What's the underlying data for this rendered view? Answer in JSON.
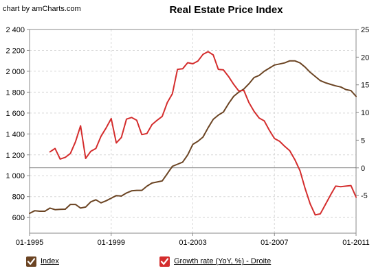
{
  "header": {
    "credit": "chart by amCharts.com"
  },
  "chart_data": {
    "type": "line",
    "title": "Real Estate Price Index",
    "xlabel": "",
    "ylabel": "",
    "x_ticks": [
      "01-1995",
      "01-1999",
      "01-2003",
      "01-2007",
      "01-2011"
    ],
    "x_range": [
      1995.0,
      2011.0
    ],
    "y_left_ticks": [
      "600",
      "800",
      "1 000",
      "1 200",
      "1 400",
      "1 600",
      "1 800",
      "2 000",
      "2 200",
      "2 400"
    ],
    "y_left_range": [
      450,
      2400
    ],
    "y_right_ticks": [
      "-5",
      "0",
      "5",
      "10",
      "15",
      "20",
      "25"
    ],
    "y_right_range": [
      -11.8,
      25
    ],
    "reference_line": {
      "axis": "right",
      "value": 0
    },
    "grid": true,
    "legend_position": "bottom",
    "series": [
      {
        "name": "Index",
        "axis": "left",
        "color": "#6b4423",
        "points": [
          [
            1995.0,
            640
          ],
          [
            1995.25,
            665
          ],
          [
            1995.5,
            660
          ],
          [
            1995.75,
            660
          ],
          [
            1996.0,
            690
          ],
          [
            1996.25,
            675
          ],
          [
            1996.5,
            678
          ],
          [
            1996.75,
            680
          ],
          [
            1997.0,
            725
          ],
          [
            1997.25,
            725
          ],
          [
            1997.5,
            690
          ],
          [
            1997.75,
            700
          ],
          [
            1998.0,
            750
          ],
          [
            1998.25,
            770
          ],
          [
            1998.5,
            740
          ],
          [
            1998.75,
            760
          ],
          [
            1999.0,
            785
          ],
          [
            1999.25,
            810
          ],
          [
            1999.5,
            805
          ],
          [
            1999.75,
            835
          ],
          [
            2000.0,
            855
          ],
          [
            2000.25,
            860
          ],
          [
            2000.5,
            860
          ],
          [
            2000.75,
            900
          ],
          [
            2001.0,
            930
          ],
          [
            2001.25,
            940
          ],
          [
            2001.5,
            950
          ],
          [
            2001.75,
            1020
          ],
          [
            2002.0,
            1090
          ],
          [
            2002.25,
            1110
          ],
          [
            2002.5,
            1130
          ],
          [
            2002.75,
            1200
          ],
          [
            2003.0,
            1300
          ],
          [
            2003.25,
            1330
          ],
          [
            2003.5,
            1370
          ],
          [
            2003.75,
            1460
          ],
          [
            2004.0,
            1540
          ],
          [
            2004.25,
            1580
          ],
          [
            2004.5,
            1610
          ],
          [
            2004.75,
            1690
          ],
          [
            2005.0,
            1760
          ],
          [
            2005.25,
            1800
          ],
          [
            2005.5,
            1830
          ],
          [
            2005.75,
            1880
          ],
          [
            2006.0,
            1940
          ],
          [
            2006.25,
            1960
          ],
          [
            2006.5,
            2000
          ],
          [
            2006.75,
            2030
          ],
          [
            2007.0,
            2060
          ],
          [
            2007.25,
            2070
          ],
          [
            2007.5,
            2080
          ],
          [
            2007.75,
            2100
          ],
          [
            2008.0,
            2100
          ],
          [
            2008.25,
            2080
          ],
          [
            2008.5,
            2040
          ],
          [
            2008.75,
            1990
          ],
          [
            2009.0,
            1950
          ],
          [
            2009.25,
            1910
          ],
          [
            2009.5,
            1890
          ],
          [
            2009.75,
            1875
          ],
          [
            2010.0,
            1860
          ],
          [
            2010.25,
            1850
          ],
          [
            2010.5,
            1825
          ],
          [
            2010.75,
            1815
          ],
          [
            2011.0,
            1760
          ]
        ]
      },
      {
        "name": "Growth rate (YoY, %) - Droite",
        "axis": "right",
        "color": "#d42d2d",
        "points": [
          [
            1996.0,
            2.9
          ],
          [
            1996.25,
            3.5
          ],
          [
            1996.5,
            1.6
          ],
          [
            1996.75,
            1.9
          ],
          [
            1997.0,
            2.6
          ],
          [
            1997.25,
            4.7
          ],
          [
            1997.5,
            7.6
          ],
          [
            1997.75,
            1.7
          ],
          [
            1998.0,
            3.0
          ],
          [
            1998.25,
            3.5
          ],
          [
            1998.5,
            5.7
          ],
          [
            1998.75,
            7.2
          ],
          [
            1999.0,
            8.9
          ],
          [
            1999.25,
            4.5
          ],
          [
            1999.5,
            5.5
          ],
          [
            1999.75,
            8.8
          ],
          [
            2000.0,
            9.1
          ],
          [
            2000.25,
            8.6
          ],
          [
            2000.5,
            6.0
          ],
          [
            2000.75,
            6.2
          ],
          [
            2001.0,
            7.8
          ],
          [
            2001.25,
            8.6
          ],
          [
            2001.5,
            9.3
          ],
          [
            2001.75,
            11.8
          ],
          [
            2002.0,
            13.4
          ],
          [
            2002.25,
            17.8
          ],
          [
            2002.5,
            17.9
          ],
          [
            2002.75,
            19.0
          ],
          [
            2003.0,
            18.8
          ],
          [
            2003.25,
            19.3
          ],
          [
            2003.5,
            20.5
          ],
          [
            2003.75,
            21.0
          ],
          [
            2004.0,
            20.4
          ],
          [
            2004.25,
            17.8
          ],
          [
            2004.5,
            17.7
          ],
          [
            2004.75,
            16.5
          ],
          [
            2005.0,
            15.1
          ],
          [
            2005.25,
            13.9
          ],
          [
            2005.5,
            14.0
          ],
          [
            2005.75,
            11.8
          ],
          [
            2006.0,
            10.2
          ],
          [
            2006.25,
            9.0
          ],
          [
            2006.5,
            8.5
          ],
          [
            2006.75,
            6.8
          ],
          [
            2007.0,
            5.3
          ],
          [
            2007.25,
            4.8
          ],
          [
            2007.5,
            3.9
          ],
          [
            2007.75,
            3.1
          ],
          [
            2008.0,
            1.5
          ],
          [
            2008.25,
            -0.5
          ],
          [
            2008.5,
            -3.7
          ],
          [
            2008.75,
            -6.5
          ],
          [
            2009.0,
            -8.5
          ],
          [
            2009.25,
            -8.3
          ],
          [
            2009.5,
            -6.6
          ],
          [
            2009.75,
            -4.9
          ],
          [
            2010.0,
            -3.3
          ],
          [
            2010.25,
            -3.4
          ],
          [
            2010.5,
            -3.3
          ],
          [
            2010.75,
            -3.2
          ],
          [
            2011.0,
            -5.3
          ]
        ]
      }
    ]
  }
}
